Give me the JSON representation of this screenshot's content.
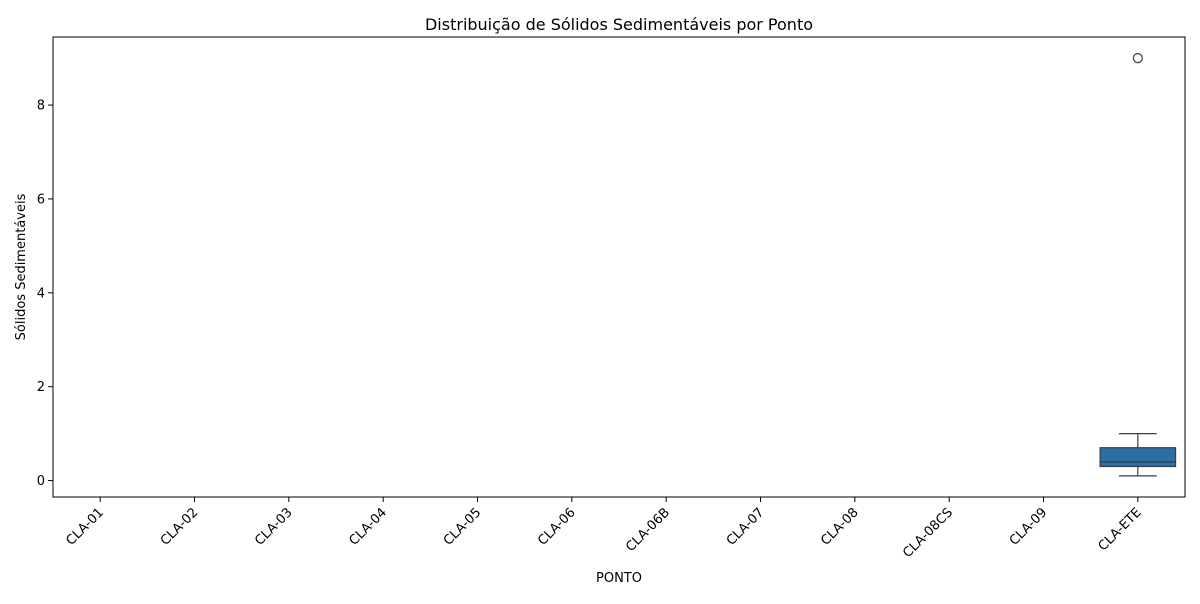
{
  "chart_data": {
    "type": "box",
    "title": "Distribuição de Sólidos Sedimentáveis por Ponto",
    "xlabel": "PONTO",
    "ylabel": "Sólidos Sedimentáveis",
    "categories": [
      "CLA-01",
      "CLA-02",
      "CLA-03",
      "CLA-04",
      "CLA-05",
      "CLA-06",
      "CLA-06B",
      "CLA-07",
      "CLA-08",
      "CLA-08CS",
      "CLA-09",
      "CLA-ETE"
    ],
    "yticks": [
      0,
      2,
      4,
      6,
      8
    ],
    "ylim": [
      -0.35,
      9.45
    ],
    "grid": false,
    "box_color": "#2a6fa6",
    "boxes": [
      {
        "category": "CLA-ETE",
        "whisker_low": 0.1,
        "q1": 0.3,
        "median": 0.4,
        "q3": 0.7,
        "whisker_high": 1.0,
        "outliers": [
          9.0
        ]
      }
    ]
  }
}
